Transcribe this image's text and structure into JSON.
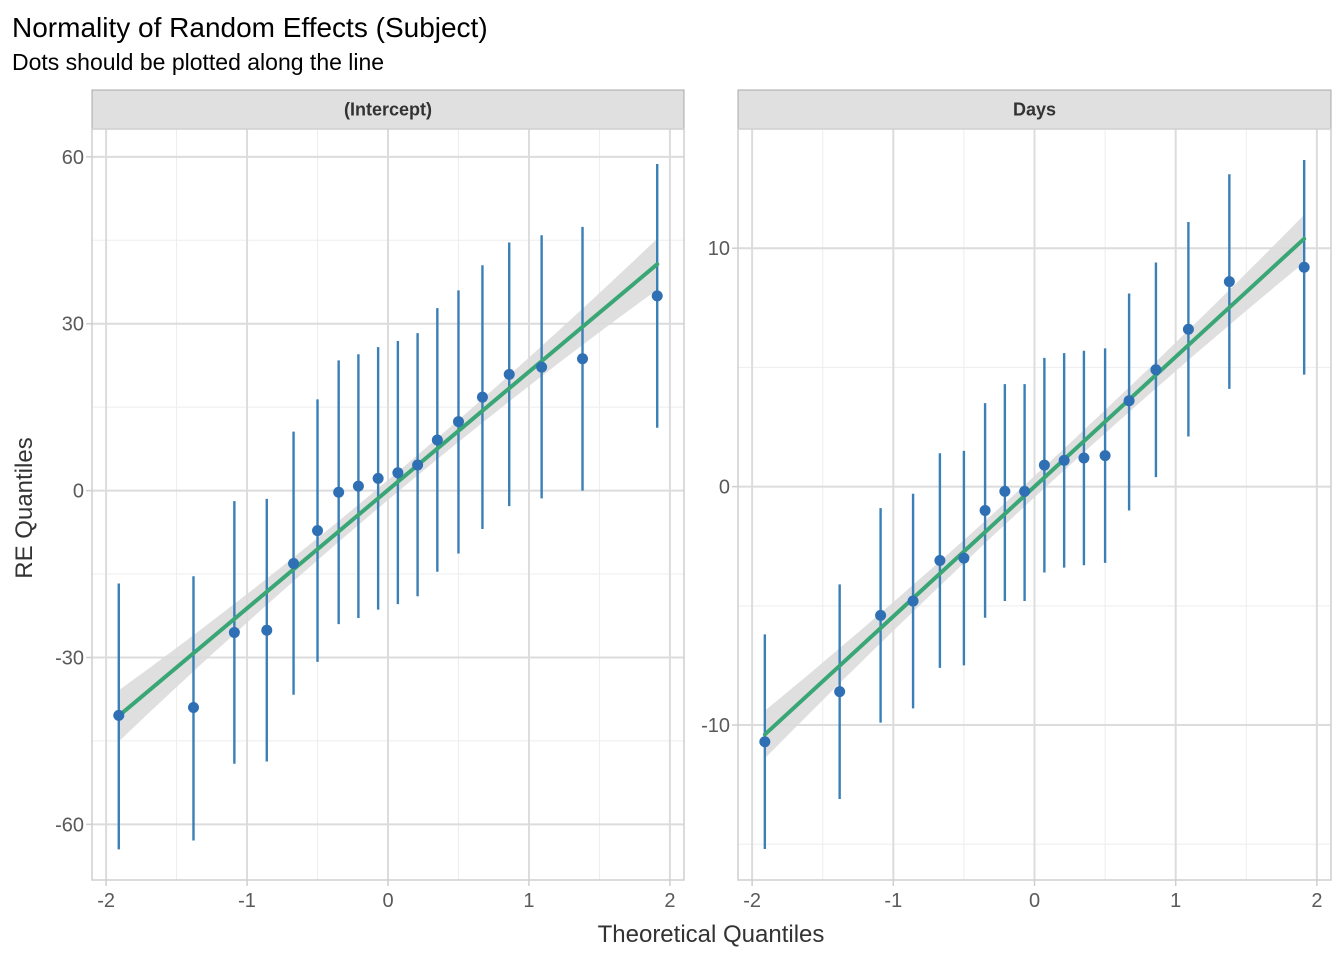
{
  "chart_data": {
    "type": "scatter",
    "title": "Normality of Random Effects (Subject)",
    "subtitle": "Dots should be plotted along the line",
    "xlabel": "Theoretical Quantiles",
    "ylabel": "RE Quantiles",
    "grid": true,
    "colors": {
      "points": "#2f6fb3",
      "errorbars": "#3a7fb6",
      "fit_line": "#3aa675",
      "band": "#d9d9d9",
      "strip_bg": "#e0e0e0",
      "grid_major": "#dcdcdc",
      "grid_minor": "#ededed"
    },
    "panels": [
      {
        "label": "(Intercept)",
        "xlim": [
          -2.1,
          2.1
        ],
        "ylim": [
          -70,
          65
        ],
        "x_ticks": [
          -2,
          -1,
          0,
          1,
          2
        ],
        "x_tick_labels": [
          "-2",
          "-1",
          "0",
          "1",
          "2"
        ],
        "y_ticks": [
          -60,
          -30,
          0,
          30,
          60
        ],
        "y_tick_labels": [
          "-60",
          "-30",
          "0",
          "30",
          "60"
        ],
        "x": [
          -1.91,
          -1.38,
          -1.09,
          -0.86,
          -0.67,
          -0.5,
          -0.35,
          -0.21,
          -0.07,
          0.07,
          0.21,
          0.35,
          0.5,
          0.67,
          0.86,
          1.09,
          1.38,
          1.91
        ],
        "y": [
          -40.4,
          -39.0,
          -25.5,
          -25.1,
          -13.1,
          -7.2,
          -0.3,
          0.8,
          2.2,
          3.2,
          4.6,
          9.1,
          12.4,
          16.8,
          20.9,
          22.2,
          23.7,
          35.0
        ],
        "ci_low": [
          -64.5,
          -62.9,
          -49.1,
          -48.7,
          -36.7,
          -30.8,
          -24.0,
          -22.9,
          -21.4,
          -20.4,
          -19.0,
          -14.6,
          -11.3,
          -6.9,
          -2.8,
          -1.4,
          0.0,
          11.3
        ],
        "ci_high": [
          -16.7,
          -15.4,
          -1.9,
          -1.5,
          10.6,
          16.4,
          23.4,
          24.5,
          25.8,
          26.9,
          28.3,
          32.8,
          36.0,
          40.5,
          44.6,
          45.9,
          47.4,
          58.7
        ],
        "fit": {
          "x": [
            -1.91,
            1.91
          ],
          "y": [
            -40.5,
            40.7
          ]
        },
        "band_halfwidth": {
          "at_ends": 4.6,
          "at_center": 1.8
        }
      },
      {
        "label": "Days",
        "xlim": [
          -2.1,
          2.1
        ],
        "ylim": [
          -16.5,
          15
        ],
        "x_ticks": [
          -2,
          -1,
          0,
          1,
          2
        ],
        "x_tick_labels": [
          "-2",
          "-1",
          "0",
          "1",
          "2"
        ],
        "y_ticks": [
          -10,
          0,
          10
        ],
        "y_tick_labels": [
          "-10",
          "0",
          "10"
        ],
        "x": [
          -1.91,
          -1.38,
          -1.09,
          -0.86,
          -0.67,
          -0.5,
          -0.35,
          -0.21,
          -0.07,
          0.07,
          0.21,
          0.35,
          0.5,
          0.67,
          0.86,
          1.09,
          1.38,
          1.91
        ],
        "y": [
          -10.7,
          -8.6,
          -5.4,
          -4.8,
          -3.1,
          -3.0,
          -1.0,
          -0.2,
          -0.2,
          0.9,
          1.1,
          1.2,
          1.3,
          3.6,
          4.9,
          6.6,
          8.6,
          9.2
        ],
        "ci_low": [
          -15.2,
          -13.1,
          -9.9,
          -9.3,
          -7.6,
          -7.5,
          -5.5,
          -4.8,
          -4.8,
          -3.6,
          -3.4,
          -3.3,
          -3.2,
          -1.0,
          0.4,
          2.1,
          4.1,
          4.7
        ],
        "ci_high": [
          -6.2,
          -4.1,
          -0.9,
          -0.3,
          1.4,
          1.5,
          3.5,
          4.3,
          4.3,
          5.4,
          5.6,
          5.7,
          5.8,
          8.1,
          9.4,
          11.1,
          13.1,
          13.7
        ],
        "fit": {
          "x": [
            -1.91,
            1.91
          ],
          "y": [
            -10.4,
            10.4
          ]
        },
        "band_halfwidth": {
          "at_ends": 1.0,
          "at_center": 0.45
        }
      }
    ]
  }
}
